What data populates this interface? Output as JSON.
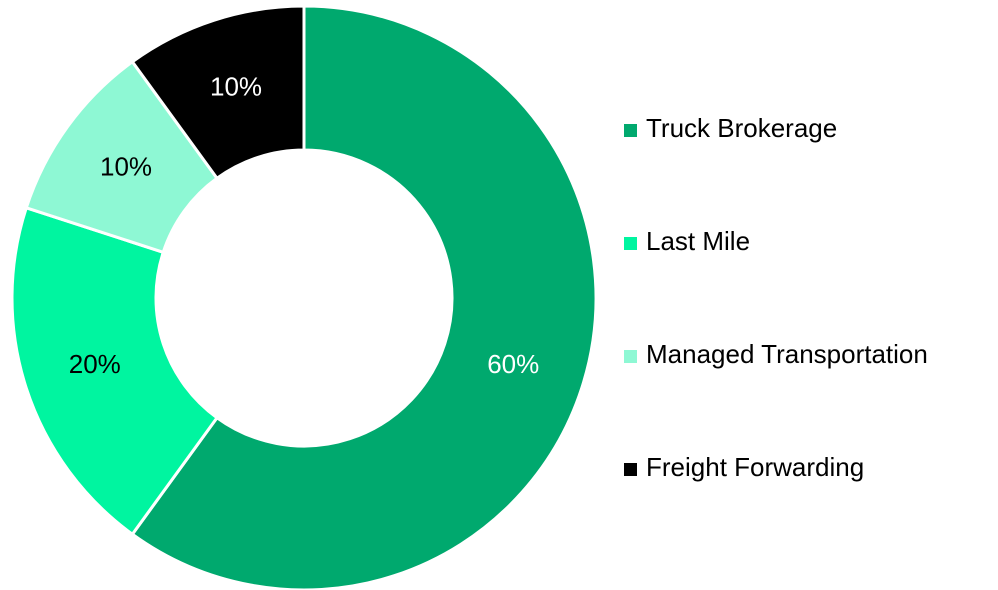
{
  "chart_data": {
    "type": "donut",
    "categories": [
      "Truck Brokerage",
      "Last Mile",
      "Managed Transportation",
      "Freight Forwarding"
    ],
    "values": [
      60,
      20,
      10,
      10
    ],
    "value_labels": [
      "60%",
      "20%",
      "10%",
      "10%"
    ],
    "colors": [
      "#00a96e",
      "#00f5a0",
      "#8ef8d4",
      "#000000"
    ],
    "label_colors": [
      "#ffffff",
      "#000000",
      "#000000",
      "#ffffff"
    ],
    "legend": "right"
  }
}
